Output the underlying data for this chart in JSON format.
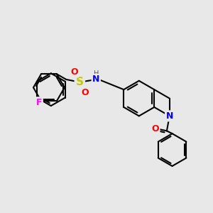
{
  "background_color": "#e8e8e8",
  "bond_color": "#000000",
  "bond_width": 1.5,
  "atom_colors": {
    "F": "#ff00ff",
    "S": "#c8c800",
    "O": "#ff0000",
    "N": "#0000ff",
    "H": "#808080",
    "C": "#000000"
  },
  "title": "",
  "figsize": [
    3.0,
    3.0
  ],
  "dpi": 100
}
